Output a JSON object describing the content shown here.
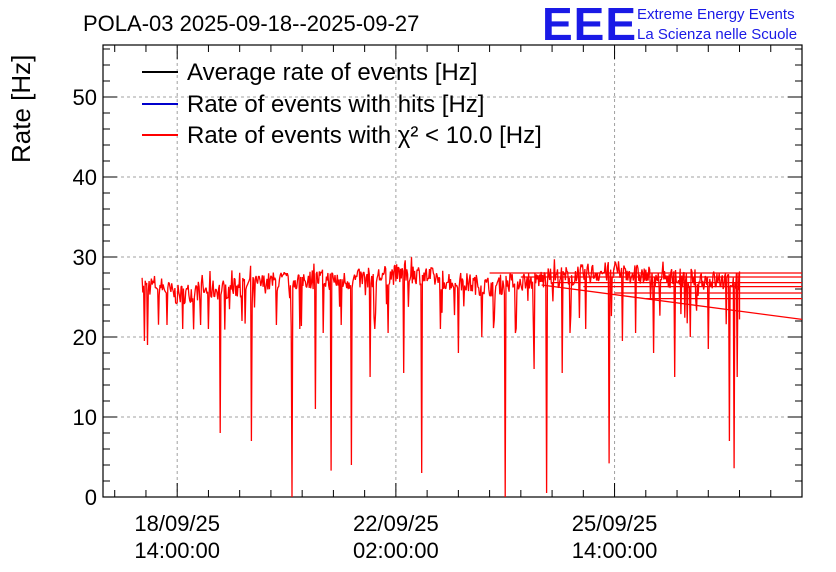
{
  "chart_data": {
    "type": "line",
    "title": "POLA-03 2025-09-18--2025-09-27",
    "ylabel": "Rate [Hz]",
    "xlabel": "",
    "ylim": [
      0,
      56.5
    ],
    "yticks": [
      0,
      10,
      20,
      30,
      40,
      50
    ],
    "xticks": [
      {
        "date": "18/09/25",
        "time": "14:00:00",
        "hours": 0
      },
      {
        "date": "22/09/25",
        "time": "02:00:00",
        "hours": 84
      },
      {
        "date": "25/09/25",
        "time": "14:00:00",
        "hours": 168
      }
    ],
    "xrange_hours": [
      -28.5,
      240
    ],
    "legend": [
      {
        "label": "Average rate of events [Hz]",
        "color": "#000000"
      },
      {
        "label": "Rate of events with hits [Hz]",
        "color": "#0000cc"
      },
      {
        "label": "Rate of events with χ² < 10.0 [Hz]",
        "color": "#ff0000"
      }
    ],
    "series": [
      {
        "name": "Rate of events with χ² < 10.0 [Hz]",
        "color": "#ff0000",
        "x_hours_start": -13.5,
        "x_hours_end": 216,
        "baseline_profile": [
          [
            -13.5,
            26.3
          ],
          [
            -8,
            26.6
          ],
          [
            0,
            25.2
          ],
          [
            8,
            25.8
          ],
          [
            20,
            26.0
          ],
          [
            35,
            26.8
          ],
          [
            50,
            27.3
          ],
          [
            65,
            27.0
          ],
          [
            80,
            27.7
          ],
          [
            90,
            28.0
          ],
          [
            100,
            27.3
          ],
          [
            110,
            26.8
          ],
          [
            120,
            26.3
          ],
          [
            130,
            26.9
          ],
          [
            145,
            27.4
          ],
          [
            160,
            28.0
          ],
          [
            170,
            28.2
          ],
          [
            180,
            27.6
          ],
          [
            195,
            27.3
          ],
          [
            210,
            27.0
          ],
          [
            216,
            26.7
          ]
        ],
        "dips": [
          [
            -12.5,
            19.5
          ],
          [
            -11.5,
            19.0
          ],
          [
            -4,
            21.5
          ],
          [
            2,
            21.0
          ],
          [
            9,
            21.5
          ],
          [
            12,
            21.0
          ],
          [
            16.5,
            8.0
          ],
          [
            25,
            22.0
          ],
          [
            28.5,
            7.0
          ],
          [
            38,
            21.5
          ],
          [
            44,
            0.0
          ],
          [
            47,
            21.0
          ],
          [
            53,
            11.0
          ],
          [
            56,
            20.5
          ],
          [
            59,
            3.3
          ],
          [
            63,
            21.5
          ],
          [
            67,
            4.0
          ],
          [
            74,
            15.0
          ],
          [
            76,
            21.0
          ],
          [
            81,
            20.5
          ],
          [
            87,
            15.5
          ],
          [
            94,
            3.0
          ],
          [
            101,
            21.0
          ],
          [
            108,
            18.0
          ],
          [
            117,
            20.0
          ],
          [
            126,
            0.0
          ],
          [
            130,
            20.5
          ],
          [
            137,
            16.0
          ],
          [
            142,
            0.5
          ],
          [
            148,
            15.5
          ],
          [
            151,
            20.5
          ],
          [
            157,
            21.0
          ],
          [
            166,
            4.2
          ],
          [
            171,
            19.5
          ],
          [
            176,
            20.5
          ],
          [
            183,
            18.0
          ],
          [
            191,
            15.0
          ],
          [
            197,
            20.0
          ],
          [
            204,
            18.5
          ],
          [
            212,
            7.0
          ],
          [
            214,
            3.6
          ],
          [
            215,
            15.0
          ]
        ],
        "trailing_lines": [
          28.0,
          27.5,
          26.8,
          26.3,
          25.5,
          24.8,
          22.2
        ]
      }
    ]
  },
  "logo": {
    "acronym": "EEE",
    "line1": "Extreme Energy Events",
    "line2": "La Scienza nelle Scuole"
  },
  "colors": {
    "series_red": "#ff0000",
    "logo_blue": "#1a1ae6",
    "grid": "#a0a0a0"
  }
}
